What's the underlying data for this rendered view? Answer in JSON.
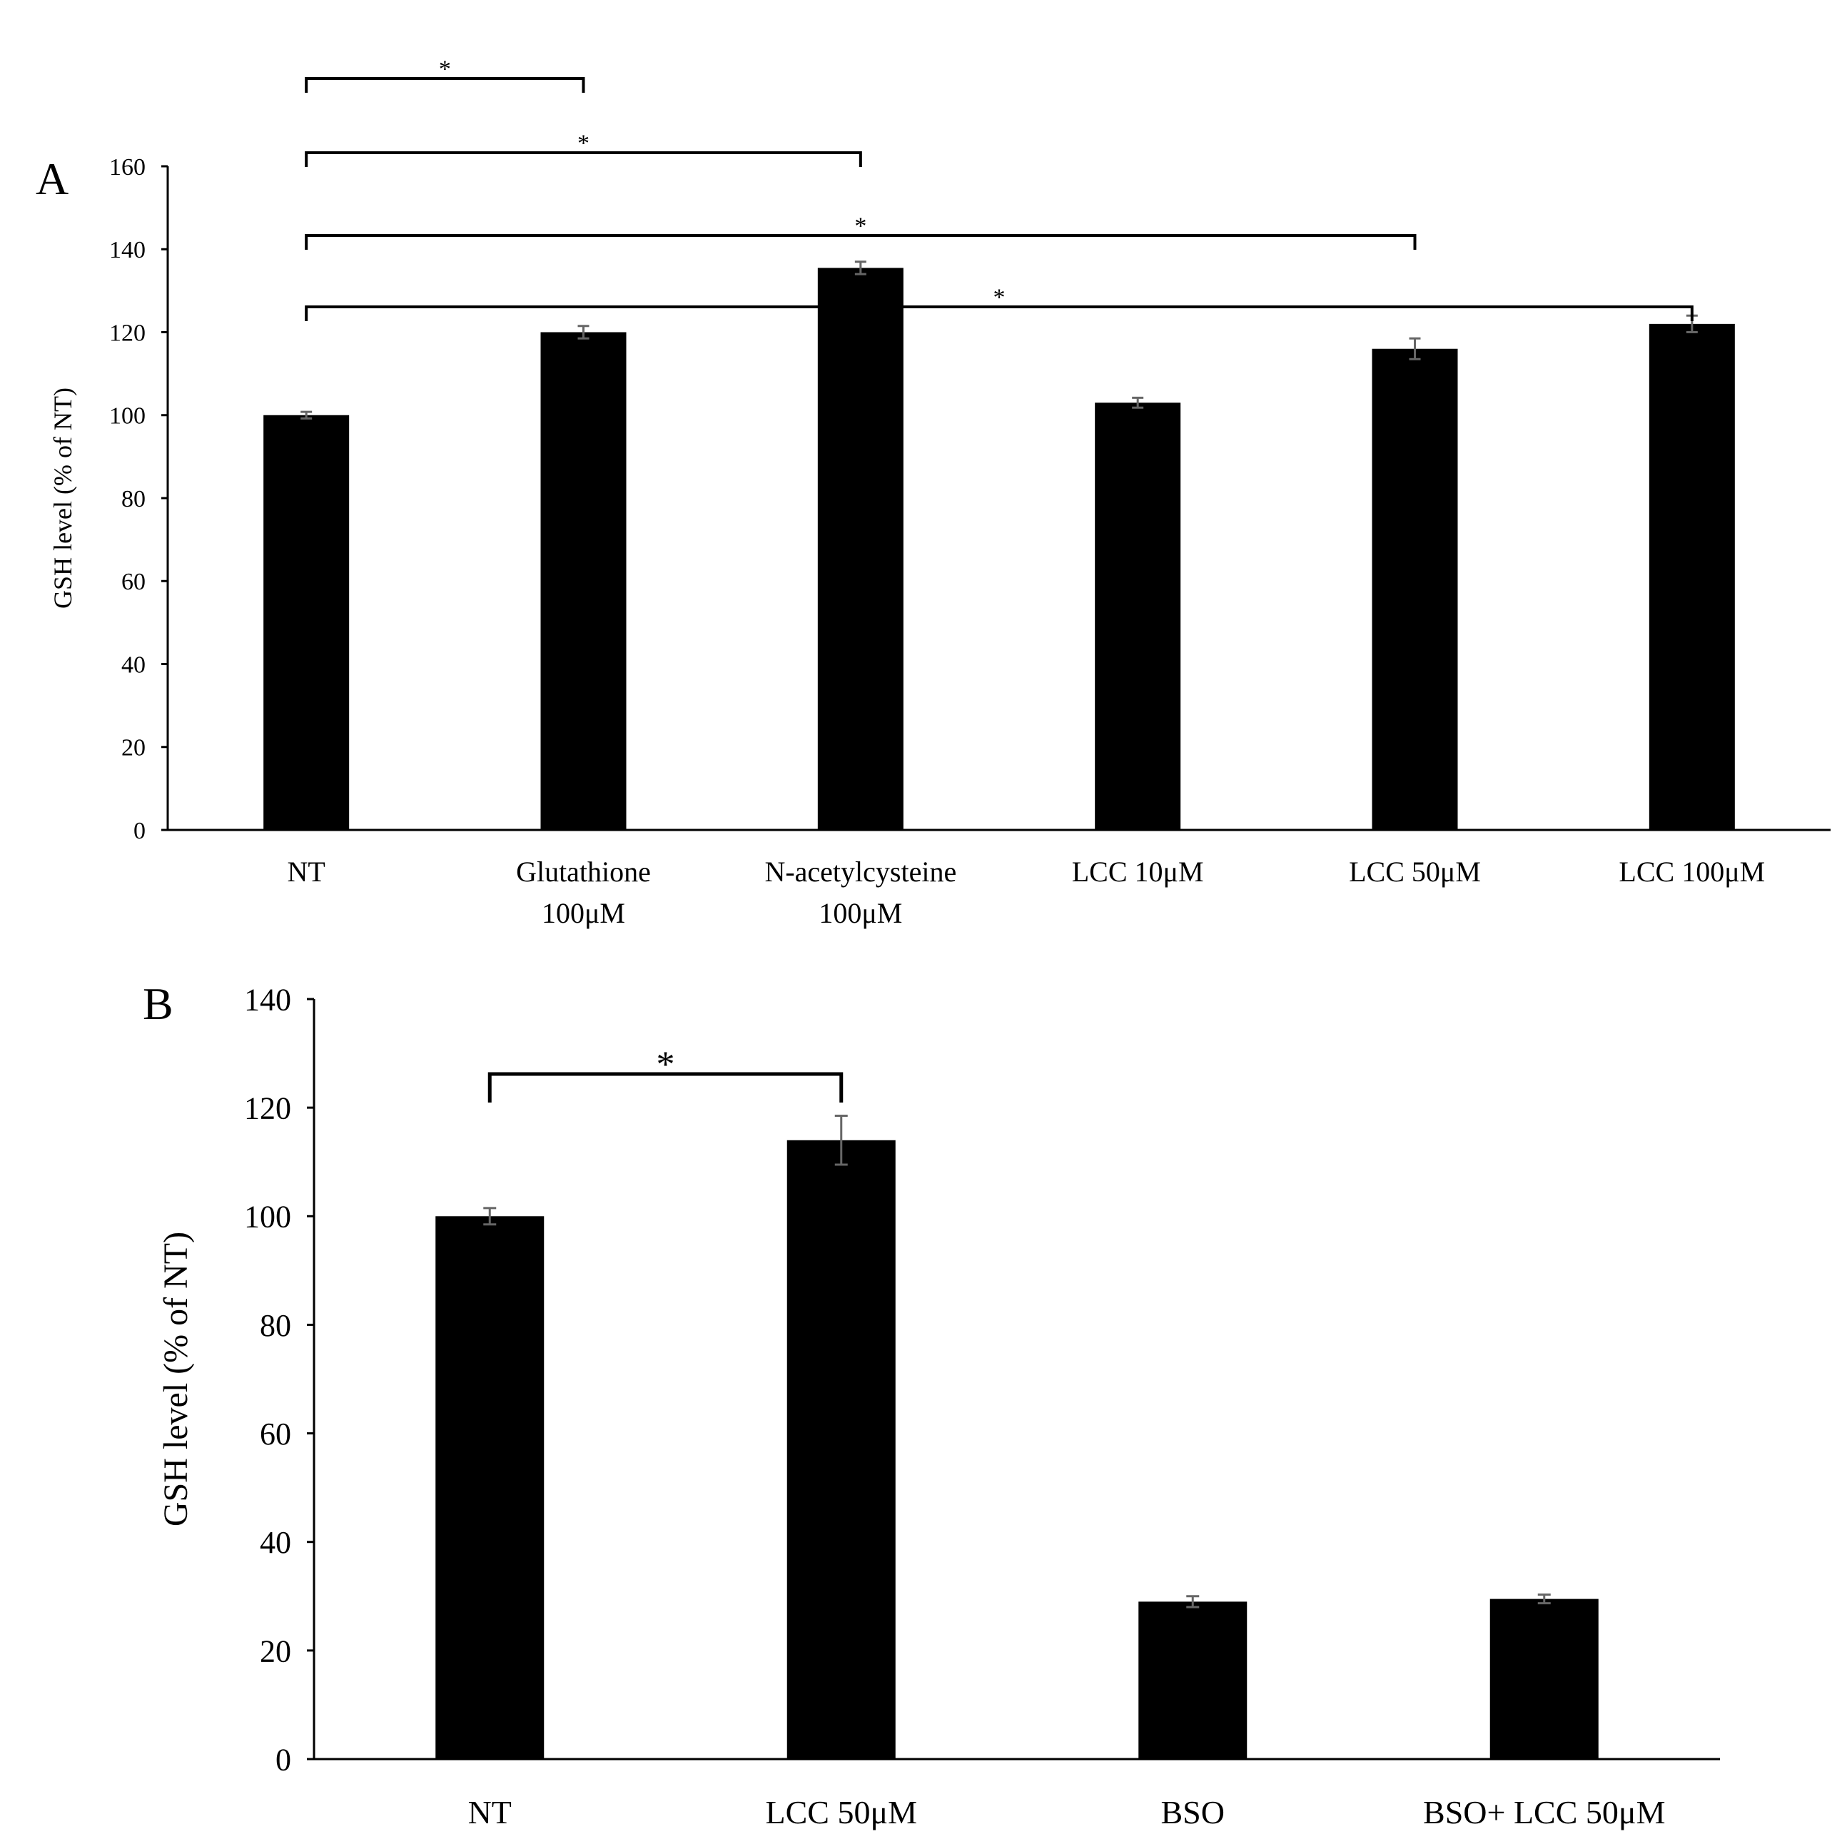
{
  "chart_data": [
    {
      "panel": "A",
      "type": "bar",
      "ylabel": "GSH level (% of NT)",
      "xlabel": "",
      "ylim": [
        0,
        160
      ],
      "yticks": [
        0,
        20,
        40,
        60,
        80,
        100,
        120,
        140,
        160
      ],
      "grid": false,
      "categories": [
        [
          "NT"
        ],
        [
          "Glutathione",
          "100μM"
        ],
        [
          "N-acetylcysteine",
          "100μM"
        ],
        [
          "LCC 10μM"
        ],
        [
          "LCC 50μM"
        ],
        [
          "LCC 100μM"
        ]
      ],
      "values": [
        100,
        120,
        135.5,
        103,
        116,
        122
      ],
      "errors": [
        0.8,
        1.5,
        1.5,
        1.2,
        2.5,
        2
      ],
      "significance": [
        {
          "from": 0,
          "to": 1,
          "label": "*"
        },
        {
          "from": 0,
          "to": 2,
          "label": "*"
        },
        {
          "from": 0,
          "to": 4,
          "label": "*"
        },
        {
          "from": 0,
          "to": 5,
          "label": "*"
        }
      ],
      "color": "#000000"
    },
    {
      "panel": "B",
      "type": "bar",
      "ylabel": "GSH level (% of NT)",
      "xlabel": "",
      "ylim": [
        0,
        140
      ],
      "yticks": [
        0,
        20,
        40,
        60,
        80,
        100,
        120,
        140
      ],
      "grid": false,
      "categories": [
        [
          "NT"
        ],
        [
          "LCC 50μM"
        ],
        [
          "BSO"
        ],
        [
          "BSO+ LCC 50μM"
        ]
      ],
      "values": [
        100,
        114,
        29,
        29.5
      ],
      "errors": [
        1.5,
        4.5,
        1,
        0.8
      ],
      "significance": [
        {
          "from": 0,
          "to": 1,
          "label": "*"
        }
      ],
      "color": "#000000"
    }
  ]
}
